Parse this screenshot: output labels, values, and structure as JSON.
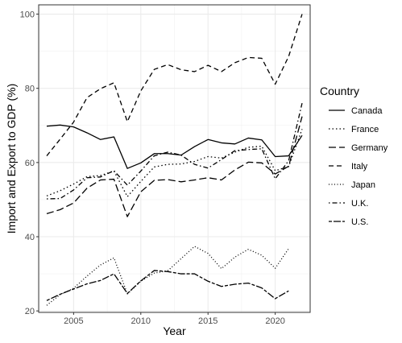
{
  "chart_data": {
    "type": "line",
    "title": "",
    "xlabel": "Year",
    "ylabel": "Import and Export to GDP (%)",
    "xlim": [
      2002.4,
      2022.6
    ],
    "ylim": [
      19.6,
      102.5
    ],
    "x_ticks": [
      2005,
      2010,
      2015,
      2020
    ],
    "y_ticks": [
      20,
      40,
      60,
      80,
      100
    ],
    "x_tick_labels": [
      "2005",
      "2010",
      "2015",
      "2020"
    ],
    "y_tick_labels": [
      "20",
      "40",
      "60",
      "80",
      "100"
    ],
    "grid": true,
    "legend_title": "Country",
    "legend_position": "right",
    "x": [
      2003,
      2004,
      2005,
      2006,
      2007,
      2008,
      2009,
      2010,
      2011,
      2012,
      2013,
      2014,
      2015,
      2016,
      2017,
      2018,
      2019,
      2020,
      2021,
      2022
    ],
    "series": [
      {
        "name": "Canada",
        "linetype": "solid",
        "values": [
          69.8,
          70.1,
          69.6,
          68.0,
          66.2,
          66.9,
          58.4,
          59.9,
          62.4,
          62.4,
          62.0,
          64.3,
          66.2,
          65.3,
          65.0,
          66.6,
          66.1,
          61.6,
          61.8,
          67.3
        ]
      },
      {
        "name": "France",
        "linetype": "dotted",
        "values": [
          51.0,
          52.4,
          54.2,
          56.2,
          56.5,
          57.7,
          50.8,
          54.9,
          58.8,
          59.5,
          59.6,
          60.3,
          61.6,
          61.2,
          62.8,
          64.1,
          64.4,
          57.8,
          58.9,
          69.0
        ]
      },
      {
        "name": "Germany",
        "linetype": "longdash",
        "values": [
          46.2,
          47.3,
          49.1,
          53.1,
          55.3,
          55.5,
          45.4,
          52.1,
          55.2,
          55.4,
          54.8,
          55.3,
          55.9,
          55.3,
          58.0,
          60.1,
          59.9,
          56.9,
          59.0,
          72.4
        ]
      },
      {
        "name": "Italy",
        "linetype": "dashed",
        "values": [
          61.8,
          66.3,
          70.9,
          77.5,
          79.9,
          81.5,
          71.0,
          79.3,
          85.1,
          86.4,
          85.0,
          84.5,
          86.2,
          84.5,
          86.9,
          88.3,
          88.1,
          81.1,
          88.6,
          100.0
        ]
      },
      {
        "name": "Japan",
        "linetype": "dotted2",
        "values": [
          21.5,
          24.4,
          26.1,
          29.4,
          32.4,
          34.3,
          24.6,
          28.0,
          30.2,
          30.8,
          34.1,
          37.4,
          35.5,
          31.4,
          34.5,
          36.6,
          35.0,
          31.5,
          36.8,
          null
        ]
      },
      {
        "name": "U.K.",
        "linetype": "dotdash",
        "values": [
          50.2,
          50.3,
          52.6,
          55.9,
          56.1,
          57.8,
          53.9,
          57.7,
          61.8,
          62.8,
          62.0,
          59.5,
          58.5,
          60.8,
          63.2,
          63.5,
          63.7,
          55.6,
          60.5,
          76.0
        ]
      },
      {
        "name": "U.S.",
        "linetype": "twodash",
        "values": [
          22.8,
          24.5,
          25.9,
          27.3,
          28.2,
          30.0,
          24.7,
          28.1,
          30.9,
          30.6,
          30.0,
          30.0,
          28.0,
          26.6,
          27.2,
          27.5,
          26.2,
          23.3,
          25.4,
          null
        ]
      }
    ]
  }
}
